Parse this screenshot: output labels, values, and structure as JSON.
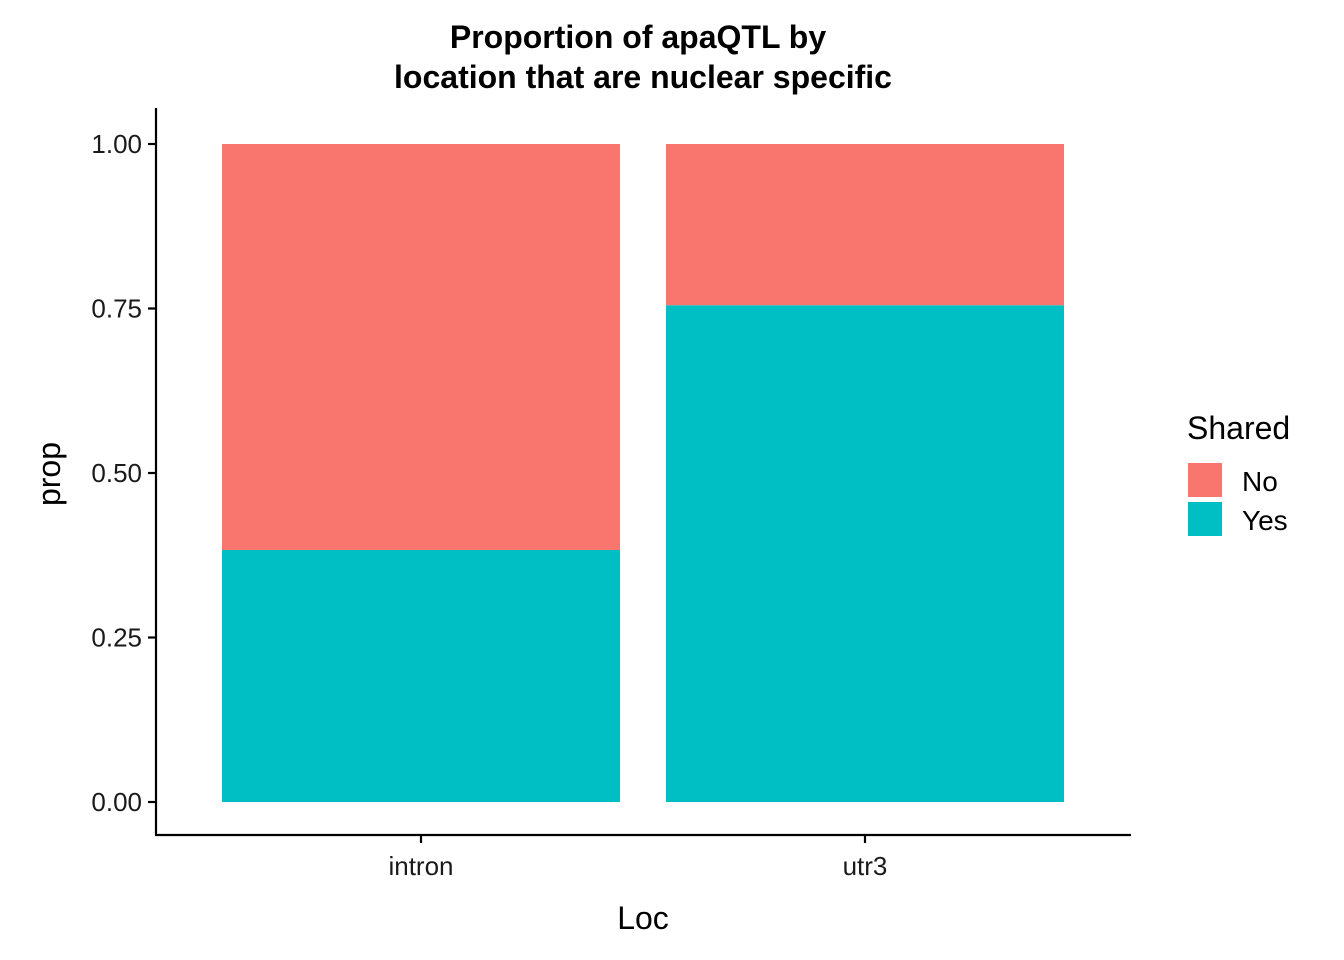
{
  "chart_data": {
    "type": "bar",
    "stacked": true,
    "title_lines": [
      "Proportion of apaQTL by",
      "location that are nuclear specific"
    ],
    "xlabel": "Loc",
    "ylabel": "prop",
    "categories": [
      "intron",
      "utr3"
    ],
    "ylim": [
      0,
      1
    ],
    "yticks": [
      "0.00",
      "0.25",
      "0.50",
      "0.75",
      "1.00"
    ],
    "ytick_values": [
      0,
      0.25,
      0.5,
      0.75,
      1.0
    ],
    "series": [
      {
        "name": "Yes",
        "color": "#00BFC4",
        "values": [
          0.383,
          0.755
        ]
      },
      {
        "name": "No",
        "color": "#F8766D",
        "values": [
          0.617,
          0.245
        ]
      }
    ],
    "legend": {
      "title": "Shared",
      "placement": "right",
      "entries": [
        {
          "label": "No",
          "color": "#F8766D"
        },
        {
          "label": "Yes",
          "color": "#00BFC4"
        }
      ]
    },
    "grid": false
  }
}
